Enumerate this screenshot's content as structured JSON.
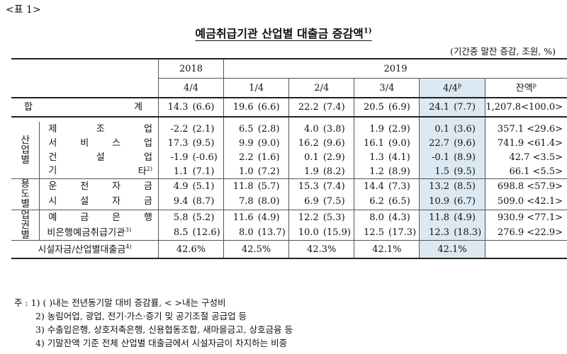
{
  "tag": "<표 1>",
  "title": "예금취급기관 산업별 대출금 증감액",
  "title_sup": "1)",
  "unit": "(기간중 말잔 증감, 조원, %)",
  "header": {
    "y2018": "2018",
    "y2019": "2019",
    "q2018": "4/4",
    "q1": "1/4",
    "q2": "2/4",
    "q3": "3/4",
    "q4": "4/4",
    "q4_sup": "p",
    "bal": "잔액",
    "bal_sup": "p"
  },
  "total": {
    "chars": [
      "합",
      "계"
    ],
    "v": [
      "14.3",
      "(6.6)",
      "19.6",
      "(6.6)",
      "22.2",
      "(7.4)",
      "20.5",
      "(6.9)",
      "24.1",
      "(7.7)"
    ],
    "bal": "1,207.8<100.0>"
  },
  "groups": {
    "industry": [
      "산",
      "업",
      "별"
    ],
    "usage": [
      "용",
      "도",
      "별"
    ],
    "sector": [
      "업",
      "권",
      "별"
    ]
  },
  "rows": [
    {
      "chars": [
        "제",
        "조",
        "업"
      ],
      "sup": "",
      "v": [
        "-2.2",
        "(2.1)",
        "6.5",
        "(2.8)",
        "4.0",
        "(3.8)",
        "1.9",
        "(2.9)",
        "0.1",
        "(3.6)"
      ],
      "bal": "357.1 <29.6>"
    },
    {
      "chars": [
        "서",
        "비",
        "스",
        "업"
      ],
      "sup": "",
      "v": [
        "17.3",
        "(9.5)",
        "9.9",
        "(9.0)",
        "16.2",
        "(9.6)",
        "16.1",
        "(9.0)",
        "22.7",
        "(9.6)"
      ],
      "bal": "741.9 <61.4>"
    },
    {
      "chars": [
        "건",
        "설",
        "업"
      ],
      "sup": "",
      "v": [
        "-1.9",
        "(-0.6)",
        "2.2",
        "(1.6)",
        "0.1",
        "(2.9)",
        "1.3",
        "(4.1)",
        "-0.1",
        "(8.9)"
      ],
      "bal": "42.7 <3.5>"
    },
    {
      "chars": [
        "기",
        "타"
      ],
      "sup": "2)",
      "v": [
        "1.1",
        "(7.1)",
        "1.0",
        "(7.2)",
        "1.9",
        "(8.2)",
        "1.2",
        "(8.9)",
        "1.5",
        "(9.5)"
      ],
      "bal": "66.1 <5.5>"
    },
    {
      "chars": [
        "운",
        "전",
        "자",
        "금"
      ],
      "sup": "",
      "v": [
        "4.9",
        "(5.1)",
        "11.8",
        "(5.7)",
        "15.3",
        "(7.4)",
        "14.4",
        "(7.3)",
        "13.2",
        "(8.5)"
      ],
      "bal": "698.8 <57.9>"
    },
    {
      "chars": [
        "시",
        "설",
        "자",
        "금"
      ],
      "sup": "",
      "v": [
        "9.4",
        "(8.7)",
        "7.8",
        "(8.0)",
        "6.9",
        "(7.5)",
        "6.2",
        "(6.5)",
        "10.9",
        "(6.7)"
      ],
      "bal": "509.0 <42.1>"
    },
    {
      "chars": [
        "예",
        "금",
        "은",
        "행"
      ],
      "sup": "",
      "v": [
        "5.8",
        "(5.2)",
        "11.6",
        "(4.9)",
        "12.2",
        "(5.3)",
        "8.0",
        "(4.3)",
        "11.8",
        "(4.9)"
      ],
      "bal": "930.9 <77.1>"
    },
    {
      "chars": [
        "비은행예금취급기관"
      ],
      "sup": "3)",
      "v": [
        "8.5",
        "(12.6)",
        "8.0",
        "(13.7)",
        "10.0",
        "(15.9)",
        "12.5",
        "(17.3)",
        "12.3",
        "(18.3)"
      ],
      "bal": "276.9 <22.9>"
    }
  ],
  "last": {
    "label": "시설자금/산업별대출금",
    "sup": "4)",
    "v": [
      "42.6%",
      "42.5%",
      "42.3%",
      "42.1%",
      "42.1%"
    ]
  },
  "notes": [
    "주 : 1) (    )내는 전년동기말 대비 증감률, <    >내는 구성비",
    "2) 농림어업, 광업, 전기·가스·증기 및 공기조절 공급업 등",
    "3) 수출입은행, 상호저축은행, 신용협동조합, 새마을금고, 상호금융 등",
    "4) 기말잔액 기준 전체 산업별 대출금에서 시설자금이 차지하는 비중"
  ]
}
